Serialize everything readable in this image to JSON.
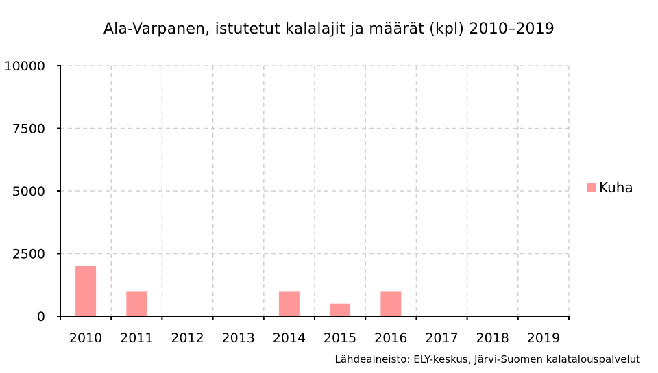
{
  "chart_data": {
    "type": "bar",
    "title": "Ala-Varpanen, istutetut kalalajit ja määrät (kpl) 2010–2019",
    "categories": [
      "2010",
      "2011",
      "2012",
      "2013",
      "2014",
      "2015",
      "2016",
      "2017",
      "2018",
      "2019"
    ],
    "series": [
      {
        "name": "Kuha",
        "color": "#ff9999",
        "values": [
          2000,
          1000,
          0,
          0,
          1000,
          500,
          1000,
          0,
          0,
          0
        ]
      }
    ],
    "ylim": [
      0,
      10000
    ],
    "yticks": [
      0,
      2500,
      5000,
      7500,
      10000
    ],
    "xlabel": "",
    "ylabel": "",
    "grid": true,
    "legend_position": "right",
    "source_note": "Lähdeaineisto: ELY-keskus, Järvi-Suomen kalatalouspalvelut"
  }
}
